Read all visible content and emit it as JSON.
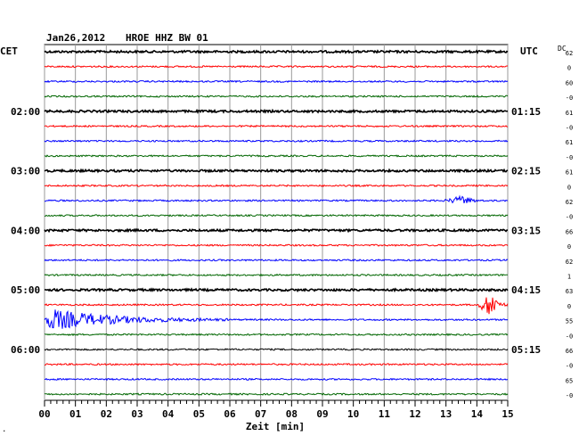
{
  "header": {
    "date": "Jan26,2012",
    "station": "HROE HHZ BW 01",
    "left_zone": "CET",
    "right_zone": "UTC",
    "dc_label": "DC"
  },
  "chart_data": {
    "type": "line",
    "title": "Jan26,2012   HROE HHZ BW 01",
    "xlabel": "Zeit [min]",
    "xlim": [
      0,
      15
    ],
    "x_ticks": [
      "00",
      "01",
      "02",
      "03",
      "04",
      "05",
      "06",
      "07",
      "08",
      "09",
      "10",
      "11",
      "12",
      "13",
      "14",
      "15"
    ],
    "grid": true,
    "trace_colors": [
      "#000000",
      "#ff0000",
      "#0000ff",
      "#006600"
    ],
    "left_hour_labels": [
      {
        "row": 4,
        "text": "02:00"
      },
      {
        "row": 8,
        "text": "03:00"
      },
      {
        "row": 12,
        "text": "04:00"
      },
      {
        "row": 16,
        "text": "05:00"
      },
      {
        "row": 20,
        "text": "06:00"
      }
    ],
    "right_hour_labels": [
      {
        "row": 4,
        "text": "01:15"
      },
      {
        "row": 8,
        "text": "02:15"
      },
      {
        "row": 12,
        "text": "03:15"
      },
      {
        "row": 16,
        "text": "04:15"
      },
      {
        "row": 20,
        "text": "05:15"
      }
    ],
    "dc_offsets": [
      "62",
      "0",
      "60",
      "-0",
      "61",
      "-0",
      "61",
      "-0",
      "61",
      "0",
      "62",
      "-0",
      "66",
      "0",
      "62",
      "1",
      "63",
      "0",
      "55",
      "-0",
      "66",
      "-0",
      "65",
      "-0"
    ],
    "events": [
      {
        "row": 10,
        "start_min": 12.9,
        "end_min": 14.2,
        "peak_min": 13.6,
        "amplitude": 0.55
      },
      {
        "row": 17,
        "start_min": 14.0,
        "end_min": 15.0,
        "peak_min": 14.5,
        "amplitude": 1.6
      },
      {
        "row": 18,
        "start_min": 0.0,
        "end_min": 6.0,
        "peak_min": 0.2,
        "amplitude": 1.3
      }
    ],
    "thick_rows": [
      0,
      4,
      8,
      12,
      16
    ]
  },
  "footer": {
    "corner_mark": "."
  }
}
